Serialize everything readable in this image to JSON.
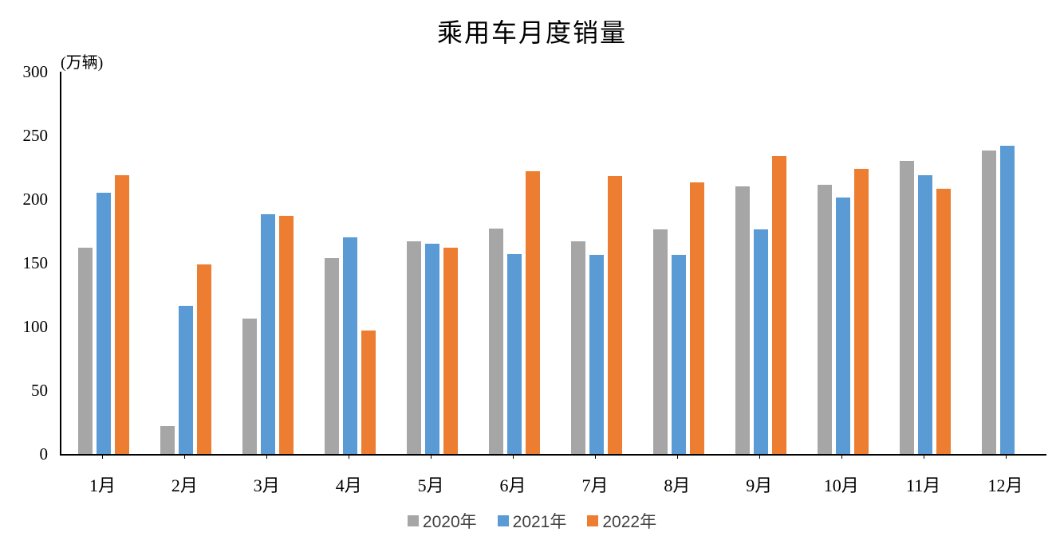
{
  "chart_data": {
    "type": "bar",
    "title": "乘用车月度销量",
    "ylabel": "(万辆)",
    "xlabel": "",
    "ylim": [
      0,
      300
    ],
    "yticks": [
      0,
      50,
      100,
      150,
      200,
      250,
      300
    ],
    "grid": false,
    "legend_position": "bottom",
    "axis_color": "#000000",
    "background_color": "#ffffff",
    "categories": [
      "1月",
      "2月",
      "3月",
      "4月",
      "5月",
      "6月",
      "7月",
      "8月",
      "9月",
      "10月",
      "11月",
      "12月"
    ],
    "series": [
      {
        "name": "2020年",
        "color": "#a6a6a6",
        "values": [
          162,
          22,
          106,
          154,
          167,
          177,
          167,
          176,
          210,
          211,
          230,
          238
        ]
      },
      {
        "name": "2021年",
        "color": "#5b9bd5",
        "values": [
          205,
          116,
          188,
          170,
          165,
          157,
          156,
          156,
          176,
          201,
          219,
          242
        ]
      },
      {
        "name": "2022年",
        "color": "#ed7d31",
        "values": [
          219,
          149,
          187,
          97,
          162,
          222,
          218,
          213,
          234,
          224,
          208,
          null
        ]
      }
    ]
  }
}
